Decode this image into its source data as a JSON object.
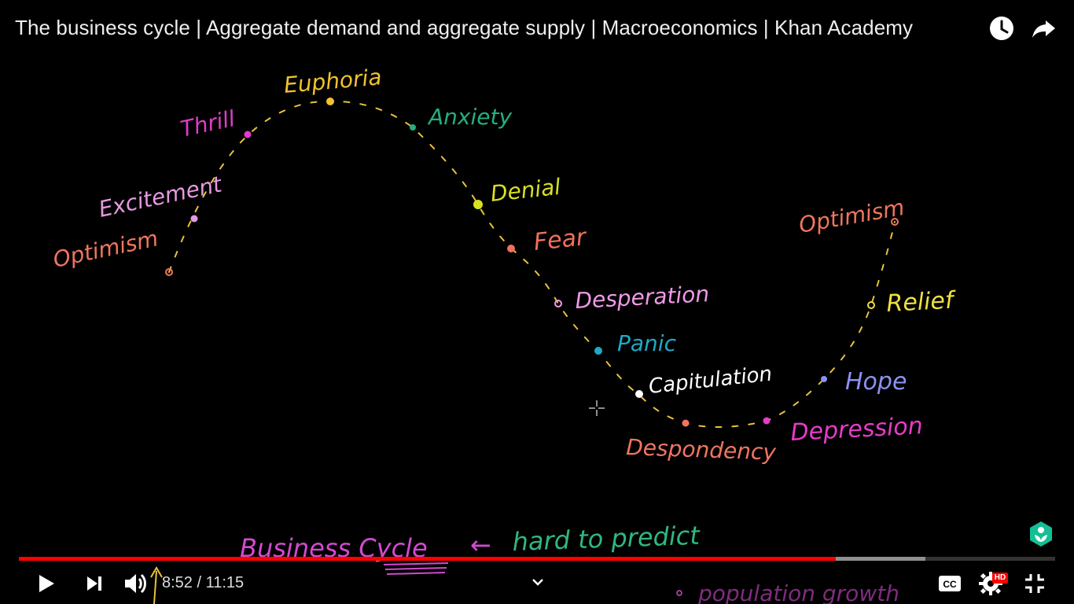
{
  "video": {
    "title": "The business cycle | Aggregate demand and aggregate supply | Macroeconomics | Khan Academy",
    "current_time": "8:52",
    "duration": "11:15",
    "time_display": "8:52 / 11:15",
    "played_fraction": 0.788,
    "buffered_fraction": 0.875,
    "hd_label": "HD"
  },
  "top_actions": {
    "watch_later_icon": "clock-icon",
    "share_icon": "share-arrow-icon"
  },
  "controls": {
    "play_icon": "play-icon",
    "next_icon": "skip-next-icon",
    "volume_icon": "volume-icon",
    "chevron_icon": "chevron-down-icon",
    "captions_icon": "cc-icon",
    "settings_icon": "gear-icon",
    "exit_fullscreen_icon": "exit-fullscreen-icon"
  },
  "board": {
    "labels": {
      "optimism_left": "Optimism",
      "excitement": "Excitement",
      "thrill": "Thrill",
      "euphoria": "Euphoria",
      "anxiety": "Anxiety",
      "denial": "Denial",
      "fear": "Fear",
      "desperation": "Desperation",
      "panic": "Panic",
      "capitulation": "Capitulation",
      "despondency": "Despondency",
      "depression": "Depression",
      "hope": "Hope",
      "relief": "Relief",
      "optimism_right": "Optimism",
      "business_cycle": "Business Cycle",
      "arrow_note": "←",
      "hard_to_predict": "hard to predict",
      "population_growth": "population growth"
    },
    "colors": {
      "optimism": "#f07560",
      "excitement": "#e49ae0",
      "thrill": "#e03cc8",
      "euphoria": "#f2c230",
      "anxiety": "#23b07e",
      "denial": "#d8e022",
      "fear": "#f0705a",
      "desperation": "#f09ae8",
      "panic": "#1ea9c5",
      "capitulation": "#ffffff",
      "despondency": "#f07560",
      "depression": "#e63cc8",
      "hope": "#8a92f0",
      "relief": "#f0e040",
      "curve": "#e7c23a",
      "business_cycle": "#d24ad0",
      "hard_to_predict": "#2fb880",
      "khan_green": "#14bf96"
    }
  }
}
